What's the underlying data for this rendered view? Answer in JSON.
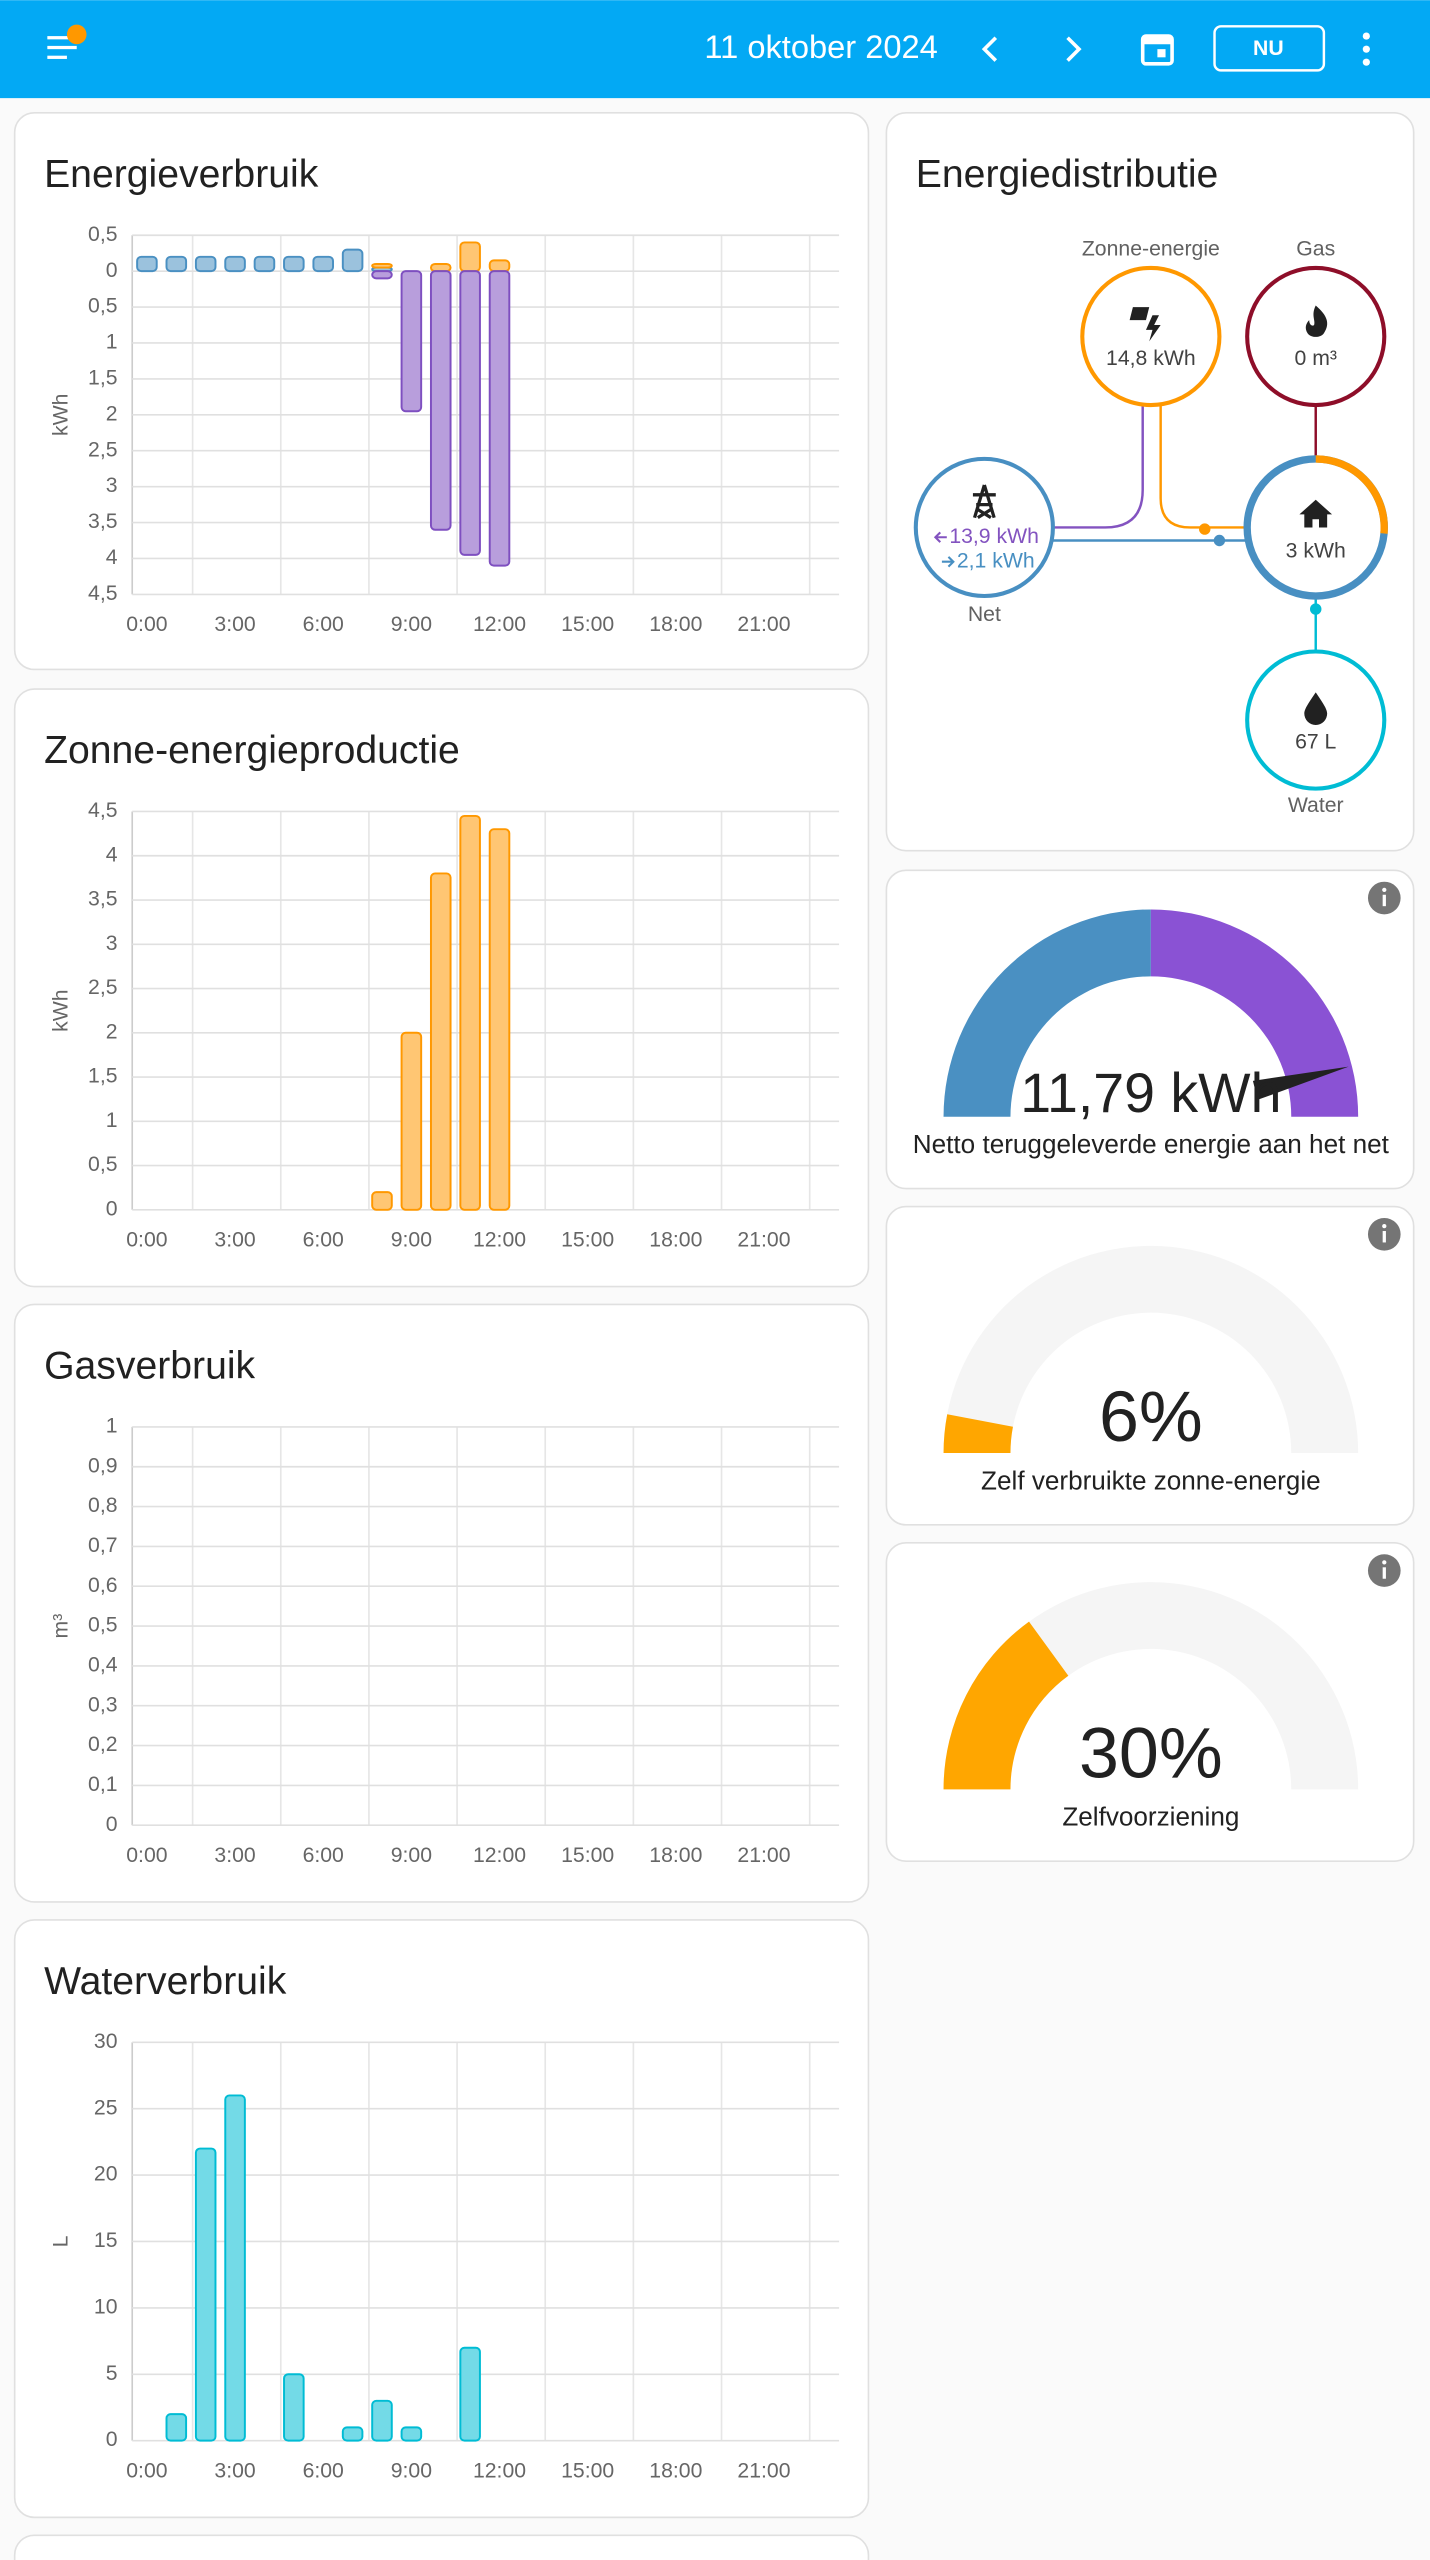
{
  "header": {
    "date": "11 oktober 2024",
    "now_button": "NU"
  },
  "chart_data": [
    {
      "type": "bar",
      "title": "Energieverbruik",
      "y_label": "kWh",
      "stacked": true,
      "categories": [
        "0:00",
        null,
        null,
        "3:00",
        null,
        null,
        "6:00",
        null,
        null,
        "9:00",
        null,
        null,
        "12:00",
        null,
        null,
        "15:00",
        null,
        null,
        "18:00",
        null,
        null,
        "21:00",
        null,
        null
      ],
      "series": [
        {
          "color": "#4a90c2",
          "values": [
            0.2,
            0.2,
            0.2,
            0.2,
            0.2,
            0.2,
            0.2,
            0.3,
            0.05,
            0,
            0,
            0,
            0,
            null,
            null,
            null,
            null,
            null,
            null,
            null,
            null,
            null,
            null,
            null
          ]
        },
        {
          "color": "#ff9800",
          "values": [
            0,
            0,
            0,
            0,
            0,
            0,
            0,
            0,
            0.05,
            0,
            0.1,
            0.4,
            0.15,
            null,
            null,
            null,
            null,
            null,
            null,
            null,
            null,
            null,
            null,
            null
          ]
        },
        {
          "color": "#7e4fc0",
          "values": [
            0,
            0,
            0,
            0,
            0,
            0,
            0,
            0,
            -0.1,
            -1.95,
            -3.6,
            -3.95,
            -4.1,
            null,
            null,
            null,
            null,
            null,
            null,
            null,
            null,
            null,
            null,
            null
          ]
        }
      ],
      "ylim": [
        -4.5,
        0.5
      ],
      "yticks": [
        {
          "value": 0.5,
          "label": "0,5"
        },
        0,
        {
          "value": -0.5,
          "label": "0,5"
        },
        {
          "value": -1,
          "label": "1"
        },
        {
          "value": -1.5,
          "label": "1,5"
        },
        {
          "value": -2,
          "label": "2"
        },
        {
          "value": -2.5,
          "label": "2,5"
        },
        {
          "value": -3,
          "label": "3"
        },
        {
          "value": -3.5,
          "label": "3,5"
        },
        {
          "value": -4,
          "label": "4"
        },
        {
          "value": -4.5,
          "label": "4,5"
        }
      ]
    },
    {
      "type": "bar",
      "title": "Zonne-energieproductie",
      "y_label": "kWh",
      "stacked": true,
      "categories": [
        "0:00",
        null,
        null,
        "3:00",
        null,
        null,
        "6:00",
        null,
        null,
        "9:00",
        null,
        null,
        "12:00",
        null,
        null,
        "15:00",
        null,
        null,
        "18:00",
        null,
        null,
        "21:00",
        null,
        null
      ],
      "series": [
        {
          "color": "#ff9800",
          "values": [
            0,
            0,
            0,
            0,
            0,
            0,
            0,
            0,
            0.2,
            2.0,
            3.8,
            4.45,
            4.3,
            null,
            null,
            null,
            null,
            null,
            null,
            null,
            null,
            null,
            null,
            null
          ]
        }
      ],
      "ylim": [
        0,
        4.5
      ],
      "yticks": [
        0,
        {
          "value": 0.5,
          "label": "0,5"
        },
        1,
        {
          "value": 1.5,
          "label": "1,5"
        },
        2,
        {
          "value": 2.5,
          "label": "2,5"
        },
        3,
        {
          "value": 3.5,
          "label": "3,5"
        },
        4,
        {
          "value": 4.5,
          "label": "4,5"
        }
      ]
    },
    {
      "type": "bar",
      "title": "Gasverbruik",
      "y_label": "m³",
      "categories": [
        "0:00",
        null,
        null,
        "3:00",
        null,
        null,
        "6:00",
        null,
        null,
        "9:00",
        null,
        null,
        "12:00",
        null,
        null,
        "15:00",
        null,
        null,
        "18:00",
        null,
        null,
        "21:00",
        null,
        null
      ],
      "series": [],
      "ylim": [
        0,
        1
      ],
      "yticks": [
        0,
        {
          "value": 0.1,
          "label": "0,1"
        },
        {
          "value": 0.2,
          "label": "0,2"
        },
        {
          "value": 0.3,
          "label": "0,3"
        },
        {
          "value": 0.4,
          "label": "0,4"
        },
        {
          "value": 0.5,
          "label": "0,5"
        },
        {
          "value": 0.6,
          "label": "0,6"
        },
        {
          "value": 0.7,
          "label": "0,7"
        },
        {
          "value": 0.8,
          "label": "0,8"
        },
        {
          "value": 0.9,
          "label": "0,9"
        },
        1
      ]
    },
    {
      "type": "bar",
      "title": "Waterverbruik",
      "y_label": "L",
      "categories": [
        "0:00",
        null,
        null,
        "3:00",
        null,
        null,
        "6:00",
        null,
        null,
        "9:00",
        null,
        null,
        "12:00",
        null,
        null,
        "15:00",
        null,
        null,
        "18:00",
        null,
        null,
        "21:00",
        null,
        null
      ],
      "series": [
        {
          "color": "#00bcd4",
          "values": [
            0,
            2,
            22,
            26,
            0,
            5,
            0,
            1,
            3,
            1,
            0,
            7,
            0,
            null,
            null,
            null,
            null,
            null,
            null,
            null,
            null,
            null,
            null,
            null
          ]
        }
      ],
      "ylim": [
        0,
        30
      ],
      "yticks": [
        0,
        5,
        10,
        15,
        20,
        25,
        30
      ]
    }
  ],
  "distribution": {
    "title": "Energiedistributie",
    "solar": {
      "label": "Zonne-energie",
      "value": "14,8 kWh"
    },
    "gas": {
      "label": "Gas",
      "value": "0 m³"
    },
    "grid": {
      "label": "Net",
      "returned": "13,9 kWh",
      "consumed": "2,1 kWh"
    },
    "home": {
      "value": "3 kWh"
    },
    "water": {
      "label": "Water",
      "value": "67 L"
    }
  },
  "gauges": [
    {
      "value": 11.79,
      "value_label": "11,79 kWh",
      "label": "Netto teruggeleverde energie aan het net",
      "lim": [
        -14,
        14
      ]
    },
    {
      "value": 6,
      "value_label": "6%",
      "label": "Zelf verbruikte zonne-energie",
      "lim": [
        0,
        100
      ]
    },
    {
      "value": 30,
      "value_label": "30%",
      "label": "Zelfvoorziening",
      "lim": [
        0,
        100
      ]
    }
  ]
}
